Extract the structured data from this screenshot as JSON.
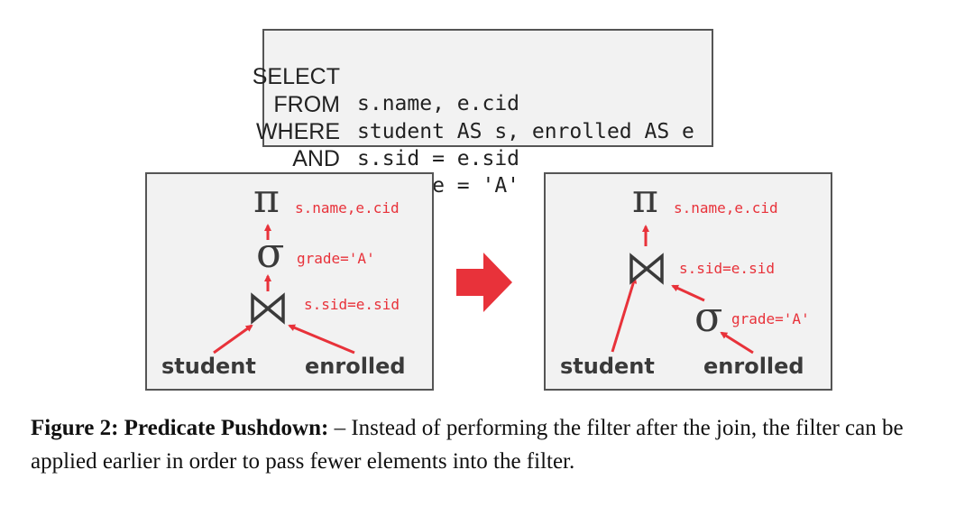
{
  "sql": {
    "lines": [
      {
        "keyword": "SELECT",
        "rest": "s.name, e.cid"
      },
      {
        "keyword": "FROM",
        "rest": "student AS s, enrolled AS e"
      },
      {
        "keyword": "WHERE",
        "rest": "s.sid = e.sid"
      },
      {
        "keyword": "AND",
        "rest": "e.grade = 'A'"
      }
    ]
  },
  "left_plan": {
    "projection_symbol": "π",
    "projection_cond": "s.name,e.cid",
    "selection_symbol": "σ",
    "selection_cond": "grade='A'",
    "join_symbol": "⋈",
    "join_cond": "s.sid=e.sid",
    "left_relation": "student",
    "right_relation": "enrolled"
  },
  "right_plan": {
    "projection_symbol": "π",
    "projection_cond": "s.name,e.cid",
    "join_symbol": "⋈",
    "join_cond": "s.sid=e.sid",
    "selection_symbol": "σ",
    "selection_cond": "grade='A'",
    "left_relation": "student",
    "right_relation": "enrolled"
  },
  "caption": {
    "label": "Figure 2: Predicate Pushdown:",
    "text": " – Instead of performing the filter after the join, the filter can be applied earlier in order to pass fewer elements into the filter."
  },
  "colors": {
    "accent": "#e8323a",
    "box_fill": "#f2f2f2",
    "border": "#555555",
    "text_dark": "#3a3a3a"
  }
}
